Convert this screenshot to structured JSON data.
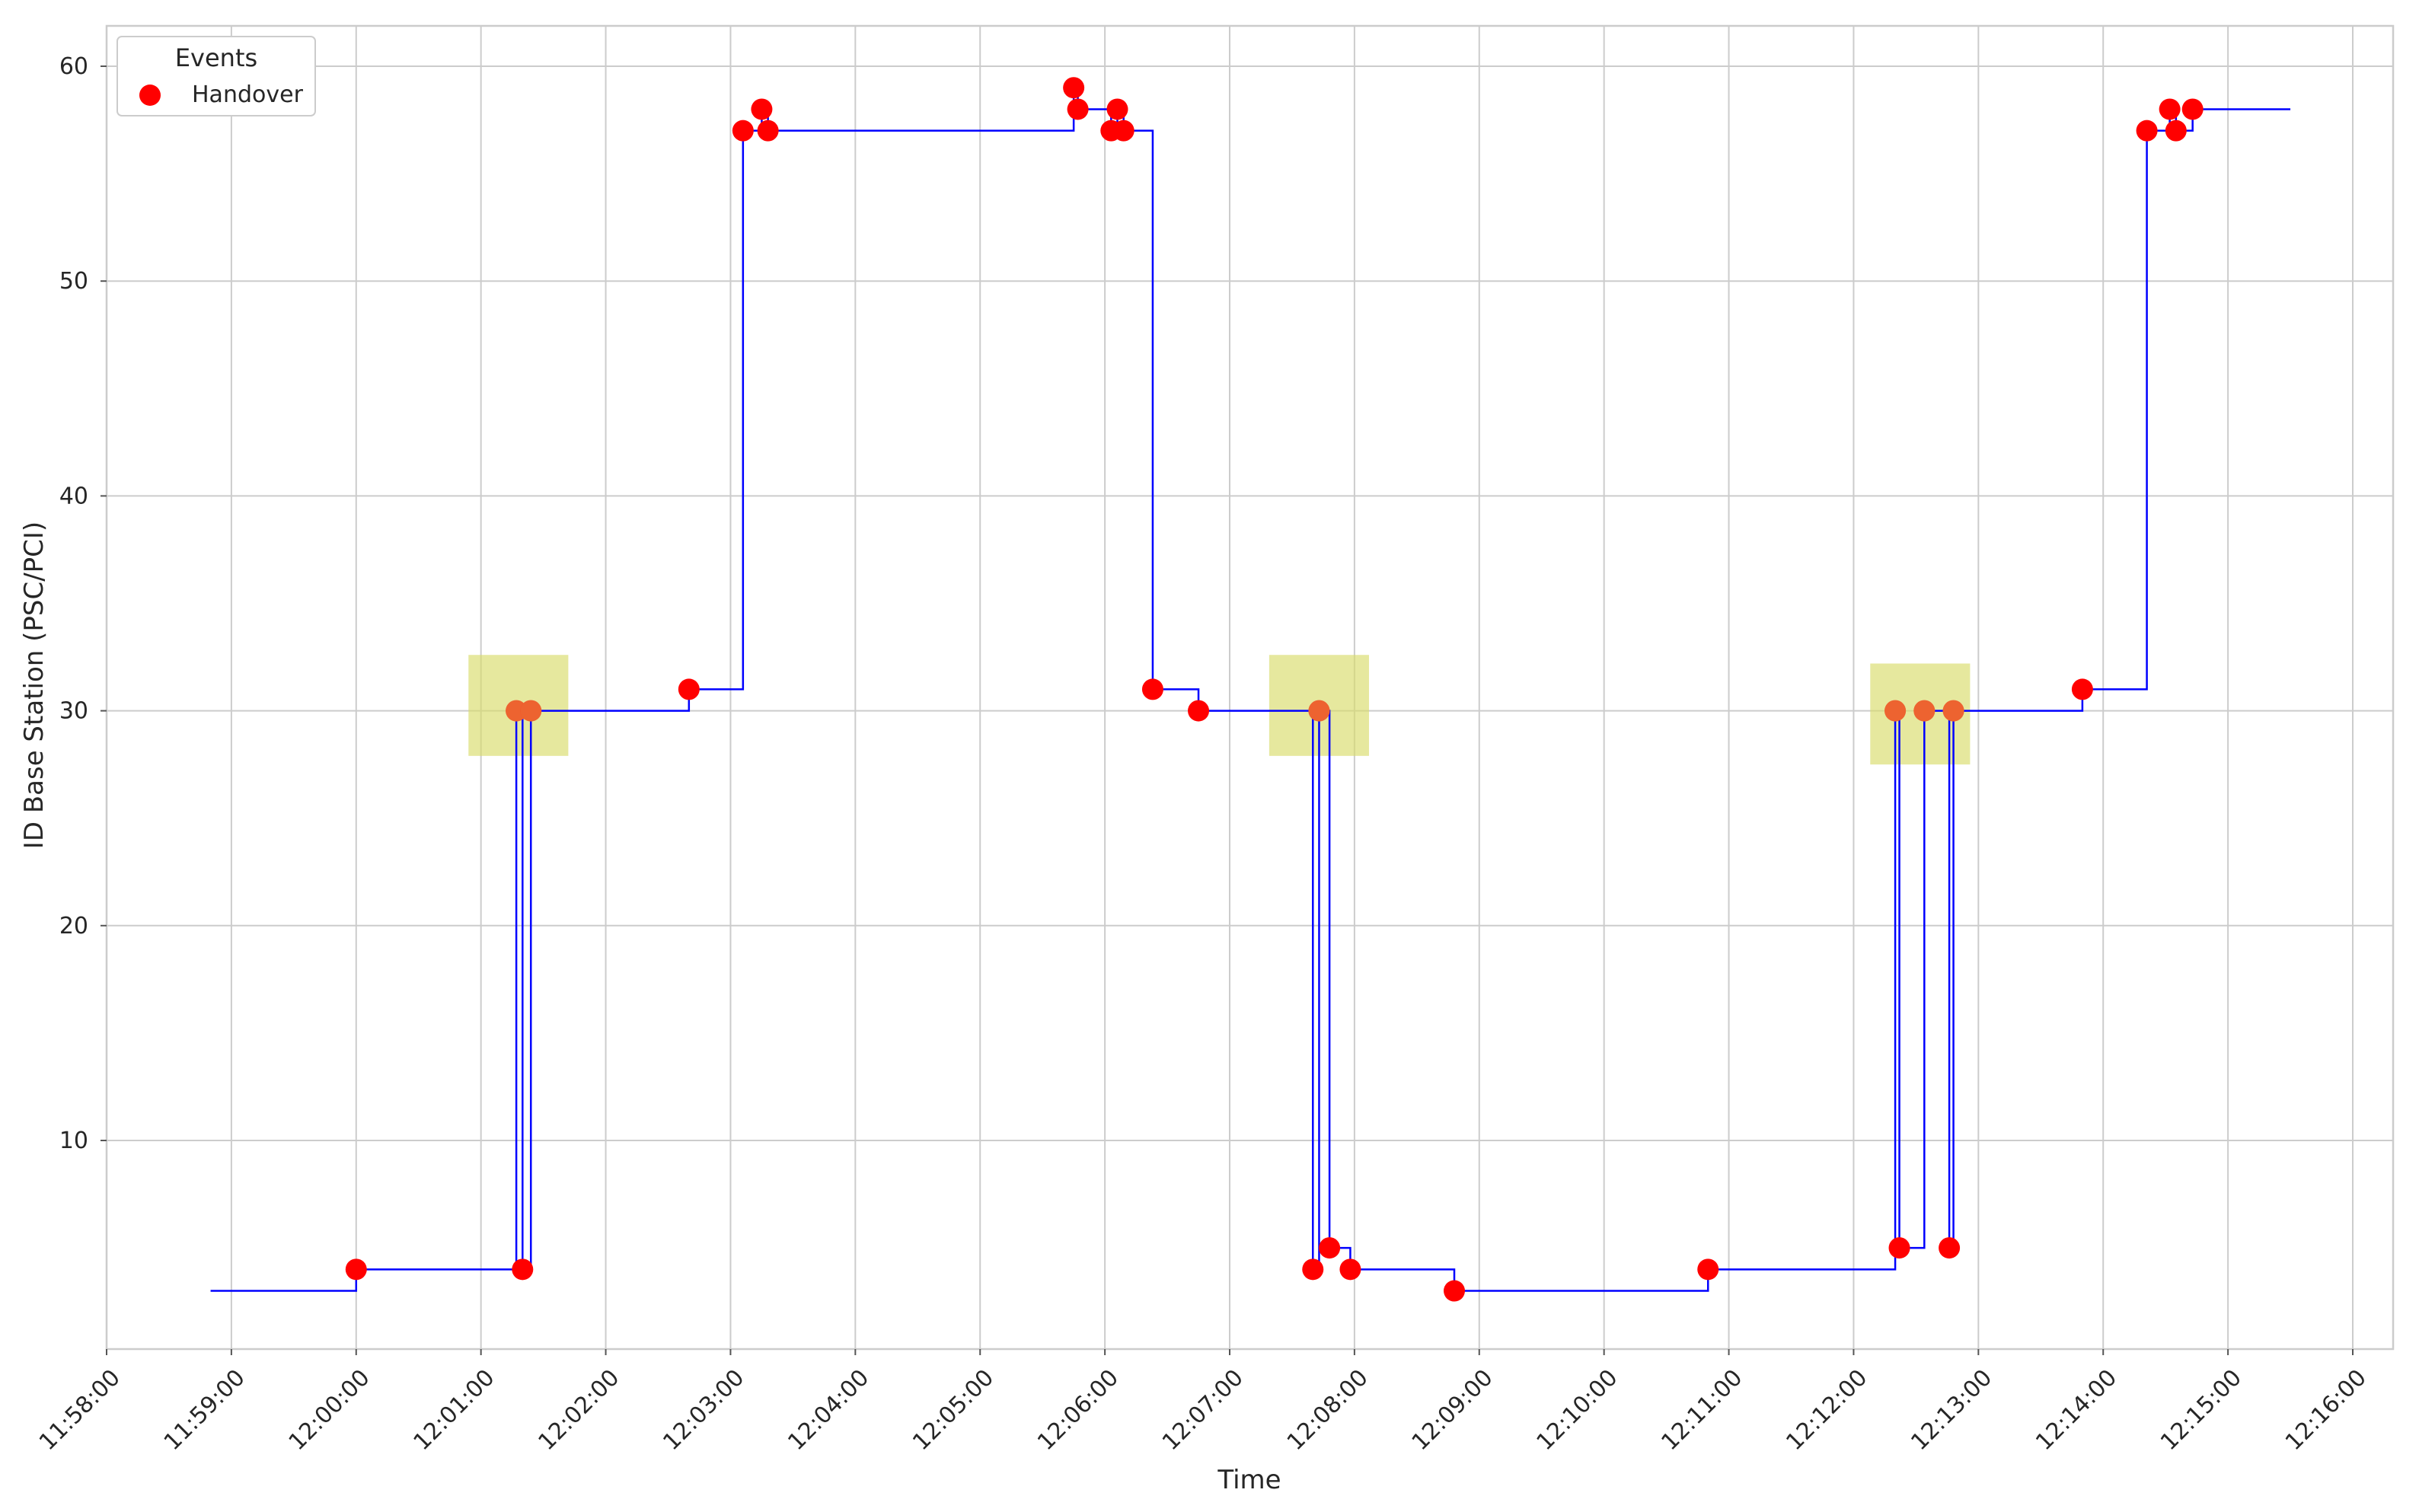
{
  "chart_data": {
    "type": "line",
    "xlabel": "Time",
    "ylabel": "ID Base Station (PSC/PCI)",
    "xlim": [
      "11:58:00",
      "12:16:00"
    ],
    "ylim": [
      0,
      60
    ],
    "x_ticks": [
      "11:58:00",
      "11:59:00",
      "12:00:00",
      "12:01:00",
      "12:02:00",
      "12:03:00",
      "12:04:00",
      "12:05:00",
      "12:06:00",
      "12:07:00",
      "12:08:00",
      "12:09:00",
      "12:10:00",
      "12:11:00",
      "12:12:00",
      "12:13:00",
      "12:14:00",
      "12:15:00",
      "12:16:00"
    ],
    "y_ticks": [
      10,
      20,
      30,
      40,
      50,
      60
    ],
    "grid": true,
    "legend": {
      "title": "Events",
      "placement": "top-left",
      "entries": [
        {
          "label": "Handover",
          "color": "#ff0000"
        }
      ]
    },
    "colors": {
      "line": "#0000ff",
      "handover": "#ff0000",
      "highlight": "#d8dc6a",
      "grid": "#cccccc",
      "axis": "#cccccc"
    },
    "series": [
      {
        "style": "step",
        "points": [
          [
            "11:58:50",
            3
          ],
          [
            "12:00:00",
            4
          ],
          [
            "12:01:17",
            30
          ],
          [
            "12:01:20",
            4
          ],
          [
            "12:01:24",
            30
          ],
          [
            "12:02:40",
            31
          ],
          [
            "12:03:06",
            57
          ],
          [
            "12:03:15",
            58
          ],
          [
            "12:03:18",
            57
          ],
          [
            "12:05:45",
            59
          ],
          [
            "12:05:47",
            58
          ],
          [
            "12:06:03",
            57
          ],
          [
            "12:06:06",
            58
          ],
          [
            "12:06:09",
            57
          ],
          [
            "12:06:23",
            31
          ],
          [
            "12:06:45",
            30
          ],
          [
            "12:07:40",
            4
          ],
          [
            "12:07:43",
            30
          ],
          [
            "12:07:48",
            5
          ],
          [
            "12:07:58",
            4
          ],
          [
            "12:08:48",
            3
          ],
          [
            "12:10:50",
            4
          ],
          [
            "12:12:20",
            30
          ],
          [
            "12:12:22",
            5
          ],
          [
            "12:12:34",
            30
          ],
          [
            "12:12:46",
            5
          ],
          [
            "12:12:48",
            30
          ],
          [
            "12:13:50",
            31
          ],
          [
            "12:14:21",
            57
          ],
          [
            "12:14:32",
            58
          ],
          [
            "12:14:35",
            57
          ],
          [
            "12:14:43",
            58
          ],
          [
            "12:15:30",
            58
          ]
        ]
      },
      {
        "name": "Handover",
        "type": "scatter",
        "points": [
          [
            "12:00:00",
            4
          ],
          [
            "12:01:17",
            30
          ],
          [
            "12:01:20",
            4
          ],
          [
            "12:01:24",
            30
          ],
          [
            "12:02:40",
            31
          ],
          [
            "12:03:06",
            57
          ],
          [
            "12:03:15",
            58
          ],
          [
            "12:03:18",
            57
          ],
          [
            "12:05:45",
            59
          ],
          [
            "12:05:47",
            58
          ],
          [
            "12:06:03",
            57
          ],
          [
            "12:06:06",
            58
          ],
          [
            "12:06:09",
            57
          ],
          [
            "12:06:23",
            31
          ],
          [
            "12:06:45",
            30
          ],
          [
            "12:07:40",
            4
          ],
          [
            "12:07:43",
            30
          ],
          [
            "12:07:48",
            5
          ],
          [
            "12:07:58",
            4
          ],
          [
            "12:08:48",
            3
          ],
          [
            "12:10:50",
            4
          ],
          [
            "12:12:20",
            30
          ],
          [
            "12:12:22",
            5
          ],
          [
            "12:12:34",
            30
          ],
          [
            "12:12:46",
            5
          ],
          [
            "12:12:48",
            30
          ],
          [
            "12:13:50",
            31
          ],
          [
            "12:14:21",
            57
          ],
          [
            "12:14:32",
            58
          ],
          [
            "12:14:35",
            57
          ],
          [
            "12:14:43",
            58
          ]
        ]
      }
    ],
    "highlights": [
      {
        "x_start": "12:00:54",
        "x_end": "12:01:42",
        "y_start": 27.9,
        "y_end": 32.6
      },
      {
        "x_start": "12:07:19",
        "x_end": "12:08:07",
        "y_start": 27.9,
        "y_end": 32.6
      },
      {
        "x_start": "12:12:08",
        "x_end": "12:12:56",
        "y_start": 27.5,
        "y_end": 32.2
      }
    ]
  }
}
